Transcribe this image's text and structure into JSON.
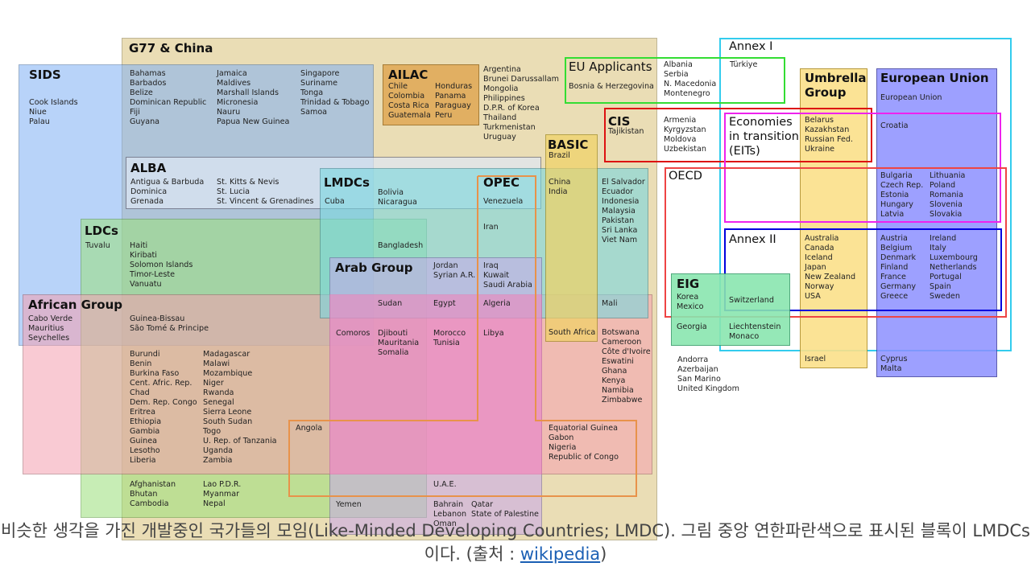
{
  "colors": {
    "g77": "#d9c27a",
    "sids": "#7fb0f5",
    "alba": "#dfe8f5",
    "ldcs": "#9be07a",
    "african": "#f5a0b0",
    "ailac": "#e0a854",
    "lmdcs": "#79d8e0",
    "opec": "#e8924a",
    "arab": "#c8a8ec",
    "basic": "#f0d264",
    "eu_applicants": "#33dd33",
    "cis": "#dd1111",
    "eits": "#ee22ee",
    "oecd": "#ee4444",
    "annex1": "#33ccee",
    "annex2": "#0000dd",
    "umbrella": "#fbe08a",
    "eu": "#8c90ff",
    "eig": "#8ae6b0"
  },
  "diagram": {
    "groups": {
      "g77": "G77 & China",
      "sids": "SIDS",
      "alba": "ALBA",
      "ldcs": "LDCs",
      "african": "African Group",
      "ailac": "AILAC",
      "lmdcs": "LMDCs",
      "opec": "OPEC",
      "arab": "Arab Group",
      "basic": "BASIC",
      "eu_applicants": "EU Applicants",
      "cis": "CIS",
      "eits": "Economies\nin transition\n(EITs)",
      "oecd": "OECD",
      "annex1": "Annex I",
      "annex2": "Annex II",
      "umbrella": "Umbrella\nGroup",
      "eu": "European Union",
      "eig": "EIG"
    },
    "countries": {
      "sids": "Cook Islands\nNiue\nPalau",
      "g77_sids_1": "Bahamas\nBarbados\nBelize\nDominican Republic\nFiji\nGuyana",
      "g77_sids_2": "Jamaica\nMaldives\nMarshall Islands\nMicronesia\nNauru\nPapua New Guinea",
      "g77_sids_3": "Singapore\nSuriname\nTonga\nTrinidad & Tobago\nSamoa",
      "ailac_1": "Chile\nColombia\nCosta Rica\nGuatemala",
      "ailac_2": "Honduras\nPanama\nParaguay\nPeru",
      "g77_misc": "Argentina\nBrunei Darussallam\nMongolia\nPhilippines\nD.P.R. of Korea\nThailand\nTurkmenistan\nUruguay",
      "alba_1": "Antigua & Barbuda\nDominica\nGrenada",
      "alba_2": "St. Kitts & Nevis\nSt. Lucia\nSt. Vincent & Grenadines",
      "lmdcs_sids": "Cuba",
      "lmdcs_alba": "Bolivia\nNicaragua",
      "opec_alba": "Venezuela",
      "basic": "Brazil",
      "basic_lmdcs": "China\nIndia",
      "lmdcs_misc": "El Salvador\nEcuador\nIndonesia\nMalaysia\nPakistan\nSri Lanka\nViet Nam",
      "opec_lmdcs": "Iran",
      "ldcs_sids": "Tuvalu",
      "ldcs_g77_sids": "Haiti\nKiribati\nSolomon Islands\nTimor-Leste\nVanuatu",
      "ldcs_lmdcs": "Bangladesh",
      "arab_lmdcs": "Jordan\nSyrian A.R.",
      "arab_opec_lmdcs": "Iraq\nKuwait\nSaudi Arabia",
      "arab_ldcs_lmdcs": "Sudan",
      "arab_african_lmdcs": "Egypt",
      "arab_african_opec_lmdcs": "Algeria",
      "african_ldcs_lmdcs": "Mali",
      "african_sids": "Cabo Verde\nMauritius\nSeychelles",
      "african_ldcs_sids": "Guinea-Bissau\nSão Tomé & Principe",
      "comoros": "Comoros",
      "arab_african_ldcs": "Djibouti\nMauritania\nSomalia",
      "arab_african_2": "Morocco\nTunisia",
      "arab_african_opec": "Libya",
      "south_africa": "South Africa",
      "african_g77": "Botswana\nCameroon\nCôte d'Ivoire\nEswatini\nGhana\nKenya\nNamibia\nZimbabwe",
      "african_ldcs_1": "Burundi\nBenin\nBurkina Faso\nCent. Afric. Rep.\nChad\nDem. Rep. Congo\nEritrea\nEthiopia\nGambia\nGuinea\nLesotho\nLiberia",
      "african_ldcs_2": "Madagascar\nMalawi\nMozambique\nNiger\nRwanda\nSenegal\nSierra Leone\nSouth Sudan\nTogo\nU. Rep. of Tanzania\nUganda\nZambia",
      "angola": "Angola",
      "african_opec": "Equatorial Guinea\nGabon\nNigeria\nRepublic of Congo",
      "ldcs_1": "Afghanistan\nBhutan\nCambodia",
      "ldcs_2": "Lao P.D.R.\nMyanmar\nNepal",
      "uae": "U.A.E.",
      "yemen": "Yemen",
      "arab_1": "Bahrain\nLebanon\nOman",
      "arab_2": "Qatar\nState of Palestine",
      "eu_applicants_1": "Bosnia & Herzegovina",
      "eu_applicants_2": "Albania\nSerbia\nN. Macedonia\nMontenegro",
      "turkiye": "Türkiye",
      "cis_only": "Tajikistan",
      "cis_misc": "Armenia\nKyrgyzstan\nMoldova\nUzbekistan",
      "cis_eits_umbrella": "Belarus\nKazakhstan\nRussian Fed.\nUkraine",
      "eu_only": "European Union",
      "croatia": "Croatia",
      "eu_eits_1": "Bulgaria\nCzech Rep.\nEstonia\nHungary\nLatvia",
      "eu_eits_2": "Lithuania\nPoland\nRomania\nSlovenia\nSlovakia",
      "umbrella_annex2": "Australia\nCanada\nIceland\nJapan\nNew Zealand\nNorway\nUSA",
      "eu_annex2_1": "Austria\nBelgium\nDenmark\nFinland\nFrance\nGermany\nGreece",
      "eu_annex2_2": "Ireland\nItaly\nLuxembourg\nNetherlands\nPortugal\nSpain\nSweden",
      "eig_oecd": "Korea\nMexico",
      "eig_annex2": "Switzerland",
      "eig_only": "Georgia",
      "eig_annex1": "Liechtenstein\nMonaco",
      "misc_europe": "Andorra\nAzerbaijan\nSan Marino\nUnited Kingdom",
      "israel": "Israel",
      "eu_misc": "Cyprus\nMalta"
    }
  },
  "caption": {
    "text": "비슷한 생각을 가진 개발중인 국가들의 모임(Like-Minded Developing Countries; LMDC). 그림 중앙 연한파란색으로 표시된 블록이 LMDCs이다. (출처 : ",
    "link": "wikipedia",
    "tail": ")"
  }
}
